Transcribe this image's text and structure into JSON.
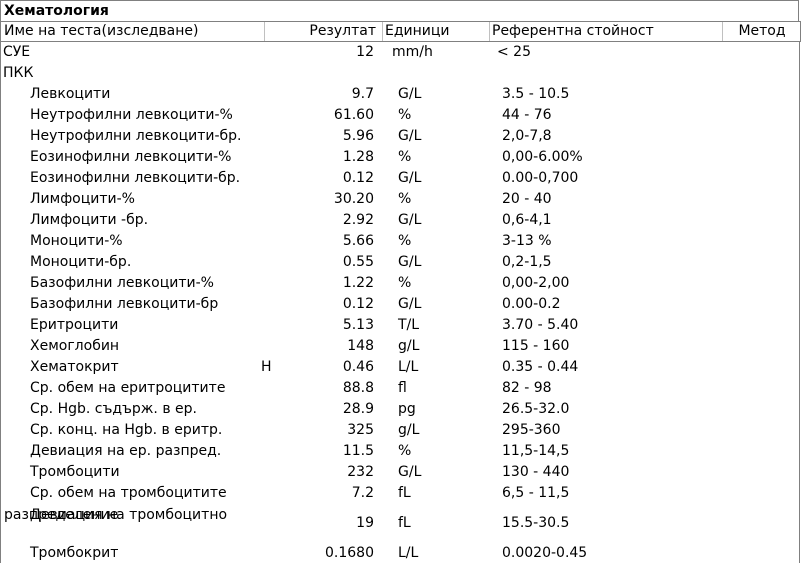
{
  "section_title": "Хематология",
  "columns": {
    "name": "Име на теста(изследване)",
    "result": "Резултат",
    "units": "Единици",
    "reference": "Референтна стойност",
    "method": "Метод"
  },
  "top_rows": [
    {
      "name": "СУЕ",
      "result": "12",
      "units": "mm/h",
      "reference": "< 25"
    }
  ],
  "group_label": "ПКК",
  "rows": [
    {
      "name": "Левкоцити",
      "flag": "",
      "result": "9.7",
      "units": "G/L",
      "reference": "3.5 - 10.5"
    },
    {
      "name": "Неутрофилни левкоцити-%",
      "flag": "",
      "result": "61.60",
      "units": "%",
      "reference": "44 - 76"
    },
    {
      "name": "Неутрофилни левкоцити-бр.",
      "flag": "",
      "result": "5.96",
      "units": "G/L",
      "reference": "2,0-7,8"
    },
    {
      "name": "Еозинофилни левкоцити-%",
      "flag": "",
      "result": "1.28",
      "units": "%",
      "reference": "0,00-6.00%"
    },
    {
      "name": "Еозинофилни левкоцити-бр.",
      "flag": "",
      "result": "0.12",
      "units": "G/L",
      "reference": "0.00-0,700"
    },
    {
      "name": "Лимфоцити-%",
      "flag": "",
      "result": "30.20",
      "units": "%",
      "reference": "20 - 40"
    },
    {
      "name": "Лимфоцити -бр.",
      "flag": "",
      "result": "2.92",
      "units": "G/L",
      "reference": "0,6-4,1"
    },
    {
      "name": "Моноцити-%",
      "flag": "",
      "result": "5.66",
      "units": "%",
      "reference": "3-13 %"
    },
    {
      "name": "Моноцити-бр.",
      "flag": "",
      "result": "0.55",
      "units": "G/L",
      "reference": "0,2-1,5"
    },
    {
      "name": "Базофилни левкоцити-%",
      "flag": "",
      "result": "1.22",
      "units": "%",
      "reference": "0,00-2,00"
    },
    {
      "name": "Базофилни левкоцити-бр",
      "flag": "",
      "result": "0.12",
      "units": "G/L",
      "reference": "0.00-0.2"
    },
    {
      "name": "Еритроцити",
      "flag": "",
      "result": "5.13",
      "units": "T/L",
      "reference": "3.70 - 5.40"
    },
    {
      "name": "Хемоглобин",
      "flag": "",
      "result": "148",
      "units": "g/L",
      "reference": "115 - 160"
    },
    {
      "name": "Хематокрит",
      "flag": "H",
      "result": "0.46",
      "units": "L/L",
      "reference": "0.35 - 0.44"
    },
    {
      "name": "Ср. обем на еритроцитите",
      "flag": "",
      "result": "88.8",
      "units": "fl",
      "reference": "82 - 98"
    },
    {
      "name": "Ср. Hgb. съдърж. в ер.",
      "flag": "",
      "result": "28.9",
      "units": "pg",
      "reference": "26.5-32.0"
    },
    {
      "name": "Ср. конц. на Hgb. в еритр.",
      "flag": "",
      "result": "325",
      "units": "g/L",
      "reference": "295-360"
    },
    {
      "name": "Девиация на ер. разпред.",
      "flag": "",
      "result": "11.5",
      "units": "%",
      "reference": "11,5-14,5"
    },
    {
      "name": "Тромбоцити",
      "flag": "",
      "result": "232",
      "units": "G/L",
      "reference": "130 - 440"
    },
    {
      "name": "Ср. обем на тромбоцитите",
      "flag": "",
      "result": "7.2",
      "units": "fL",
      "reference": "6,5 - 11,5"
    }
  ],
  "tall_row": {
    "name_line1": "Девиация на тромбоцитно",
    "name_line2": "разпределение",
    "result": "19",
    "units": "fL",
    "reference": "15.5-30.5"
  },
  "last_row": {
    "name": "Тромбокрит",
    "result": "0.1680",
    "units": "L/L",
    "reference": "0.0020-0.45"
  }
}
